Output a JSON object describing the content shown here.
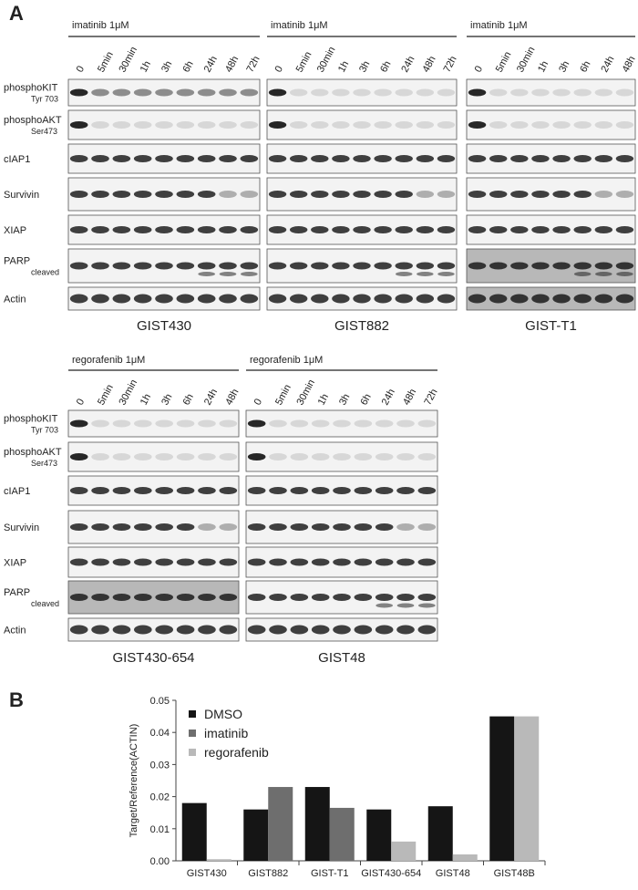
{
  "panel_a": {
    "label": "A",
    "blot_rows": [
      {
        "labels": [
          {
            "name": "phosphoKIT",
            "sub": "Tyr 703"
          },
          {
            "name": "phosphoAKT",
            "sub": "Ser473"
          },
          {
            "name": "cIAP1"
          },
          {
            "name": "Survivin"
          },
          {
            "name": "XIAP"
          },
          {
            "name": "PARP",
            "sub": "cleaved"
          },
          {
            "name": "Actin"
          }
        ],
        "groups": [
          {
            "treatment": "imatinib 1μM",
            "timepoints": [
              "0",
              "5min",
              "30min",
              "1h",
              "3h",
              "6h",
              "24h",
              "48h",
              "72h"
            ],
            "cell_line": "GIST430"
          },
          {
            "treatment": "imatinib 1μM",
            "timepoints": [
              "0",
              "5min",
              "30min",
              "1h",
              "3h",
              "6h",
              "24h",
              "48h",
              "72h"
            ],
            "cell_line": "GIST882"
          },
          {
            "treatment": "imatinib 1μM",
            "timepoints": [
              "0",
              "5min",
              "30min",
              "1h",
              "3h",
              "6h",
              "24h",
              "48h"
            ],
            "cell_line": "GIST-T1"
          }
        ]
      },
      {
        "labels": [
          {
            "name": "phosphoKIT",
            "sub": "Tyr 703"
          },
          {
            "name": "phosphoAKT",
            "sub": "Ser473"
          },
          {
            "name": "cIAP1"
          },
          {
            "name": "Survivin"
          },
          {
            "name": "XIAP"
          },
          {
            "name": "PARP",
            "sub": "cleaved"
          },
          {
            "name": "Actin"
          }
        ],
        "groups": [
          {
            "treatment": "regorafenib 1μM",
            "timepoints": [
              "0",
              "5min",
              "30min",
              "1h",
              "3h",
              "6h",
              "24h",
              "48h"
            ],
            "cell_line": "GIST430-654"
          },
          {
            "treatment": "regorafenib 1μM",
            "timepoints": [
              "0",
              "5min",
              "30min",
              "1h",
              "3h",
              "6h",
              "24h",
              "48h",
              "72h"
            ],
            "cell_line": "GIST48"
          }
        ]
      }
    ]
  },
  "panel_b": {
    "label": "B"
  },
  "chart_data": {
    "type": "bar",
    "ylabel": "Target/Reference(ACTIN)",
    "categories": [
      "GIST430",
      "GIST882",
      "GIST-T1",
      "GIST430-654",
      "GIST48",
      "GIST48B"
    ],
    "series": [
      {
        "name": "DMSO",
        "color": "#151515",
        "values": [
          0.018,
          0.016,
          0.023,
          0.016,
          0.017,
          0.045
        ]
      },
      {
        "name": "imatinib",
        "color": "#6e6e6e",
        "values": [
          null,
          0.023,
          0.0165,
          null,
          null,
          null
        ]
      },
      {
        "name": "regorafenib",
        "color": "#b9b9b9",
        "values": [
          0.0005,
          null,
          null,
          0.006,
          0.002,
          0.045
        ]
      }
    ],
    "ylim": [
      0,
      0.05
    ],
    "yticks": [
      {
        "value": 0,
        "label": "0.00"
      },
      0.01,
      0.02,
      0.03,
      0.04,
      0.05
    ],
    "legend": "upper left"
  }
}
